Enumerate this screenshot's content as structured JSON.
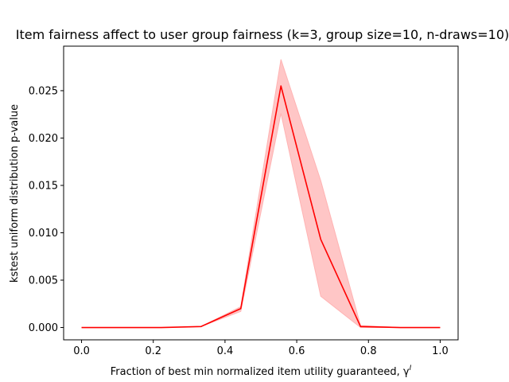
{
  "chart_data": {
    "type": "line",
    "title": "Item fairness affect to user group fairness (k=3, group size=10, n-draws=10)",
    "xlabel": "Fraction of best min normalized item utility guaranteed, γ",
    "xlabel_superscript": "I",
    "ylabel": "kstest uniform distribution p-value",
    "xlim": [
      -0.05,
      1.05
    ],
    "ylim": [
      -0.0013,
      0.0297
    ],
    "grid": false,
    "x_ticks": [
      0.0,
      0.2,
      0.4,
      0.6,
      0.8,
      1.0
    ],
    "x_tick_labels": [
      "0.0",
      "0.2",
      "0.4",
      "0.6",
      "0.8",
      "1.0"
    ],
    "y_ticks": [
      0.0,
      0.005,
      0.01,
      0.015,
      0.02,
      0.025
    ],
    "y_tick_labels": [
      "0.000",
      "0.005",
      "0.010",
      "0.015",
      "0.020",
      "0.025"
    ],
    "series": [
      {
        "color": "#ff0000",
        "band_color": "#ffb3b3",
        "x": [
          0.0,
          0.111,
          0.222,
          0.333,
          0.444,
          0.556,
          0.667,
          0.778,
          0.889,
          1.0
        ],
        "values": [
          0.0,
          0.0,
          0.0,
          0.0001,
          0.002,
          0.0255,
          0.0093,
          0.0001,
          0.0,
          0.0
        ],
        "band_lower": [
          0.0,
          0.0,
          0.0,
          0.0001,
          0.0017,
          0.0226,
          0.0033,
          0.0,
          0.0,
          0.0
        ],
        "band_upper": [
          0.0,
          0.0,
          0.0,
          0.0001,
          0.0022,
          0.0283,
          0.0155,
          0.0002,
          0.0,
          0.0
        ]
      }
    ]
  }
}
